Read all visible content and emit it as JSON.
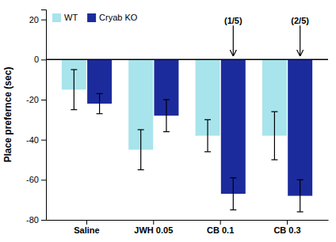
{
  "chart_data": {
    "type": "bar",
    "categories": [
      "Saline",
      "JWH 0.05",
      "CB 0.1",
      "CB 0.3"
    ],
    "series": [
      {
        "name": "WT",
        "color": "#a8e4ec",
        "values": [
          -15,
          -45,
          -38,
          -38
        ],
        "errors": [
          10,
          10,
          8,
          12
        ]
      },
      {
        "name": "Cryab KO",
        "color": "#1c2b9c",
        "values": [
          -22,
          -28,
          -67,
          -68
        ],
        "errors": [
          5,
          8,
          8,
          8
        ]
      }
    ],
    "ylabel": "Place prefernce (sec)",
    "ylim": [
      -80,
      25
    ],
    "yticks": [
      -80,
      -60,
      -40,
      -20,
      0,
      20
    ],
    "legend": "upper left",
    "annotations": [
      {
        "text": "(1/5)",
        "category": "CB 0.1",
        "series": "Cryab KO",
        "y": 2,
        "text_y": 17
      },
      {
        "text": "(2/5)",
        "category": "CB 0.3",
        "series": "Cryab KO",
        "y": 2,
        "text_y": 17
      }
    ]
  }
}
